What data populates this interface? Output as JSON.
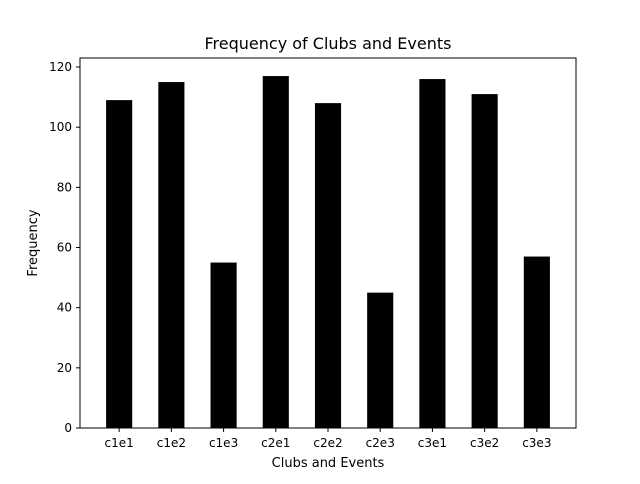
{
  "chart_data": {
    "type": "bar",
    "title": "Frequency of Clubs and Events",
    "xlabel": "Clubs and Events",
    "ylabel": "Frequency",
    "categories": [
      "c1e1",
      "c1e2",
      "c1e3",
      "c2e1",
      "c2e2",
      "c2e3",
      "c3e1",
      "c3e2",
      "c3e3"
    ],
    "values": [
      109,
      115,
      55,
      117,
      108,
      45,
      116,
      111,
      57
    ],
    "ylim": [
      0,
      123
    ],
    "yticks": [
      0,
      20,
      40,
      60,
      80,
      100,
      120
    ],
    "grid": false,
    "bar_color": "#000000"
  }
}
